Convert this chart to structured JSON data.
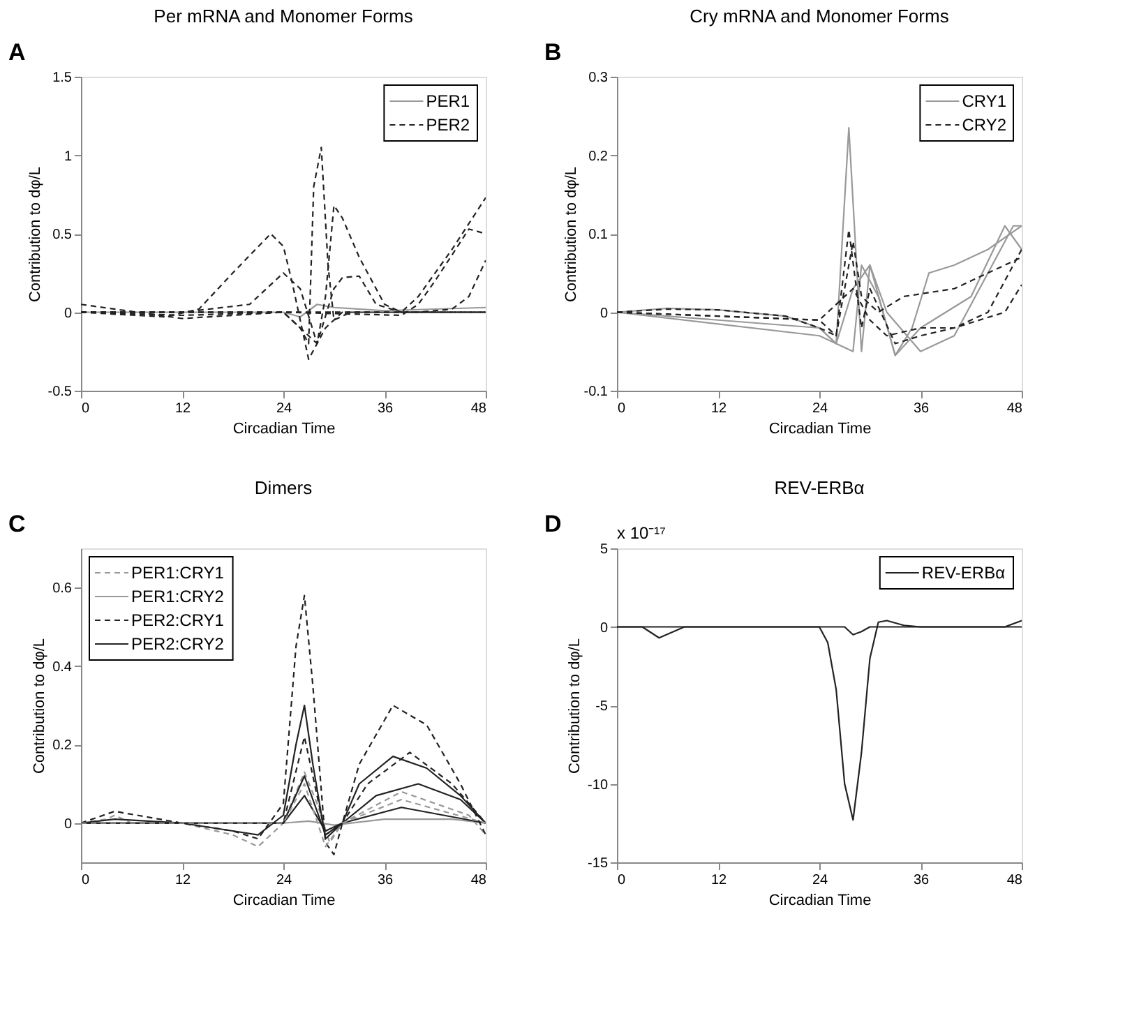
{
  "chart_data": [
    {
      "type": "line",
      "title": "Per mRNA and Monomer Forms",
      "xlabel": "Circadian Time",
      "ylabel": "Contribution to dφ/L",
      "annotations": [
        "A"
      ],
      "xlim": [
        0,
        48
      ],
      "xticks": [
        0,
        12,
        24,
        36,
        48
      ],
      "ylim": [
        -0.5,
        1.5
      ],
      "yticks": [
        -0.5,
        0,
        0.5,
        1,
        1.5
      ],
      "legend": "top right",
      "series": [
        {
          "name": "PER1",
          "color": "#999999",
          "line_style": "solid",
          "x": [
            0,
            12,
            24,
            26,
            28,
            30,
            36,
            48
          ],
          "values": [
            0,
            0,
            0,
            -0.03,
            0.05,
            0.03,
            0.01,
            0.03
          ]
        },
        {
          "name": "PER2",
          "color": "#222222",
          "line_style": "dashed",
          "x": [
            0,
            12,
            24,
            26,
            27,
            27.6,
            28.5,
            29.3,
            30,
            32,
            36,
            48
          ],
          "values": [
            0.05,
            -0.04,
            0,
            -0.1,
            -0.2,
            0.8,
            1.05,
            0.3,
            -0.05,
            0,
            0,
            0
          ]
        },
        {
          "color": "#222222",
          "line_style": "dashed",
          "x": [
            0,
            10,
            14,
            18,
            22.5,
            24,
            25,
            26,
            27,
            29,
            31,
            36,
            48
          ],
          "values": [
            0,
            -0.03,
            0.02,
            0.25,
            0.5,
            0.42,
            0.2,
            -0.05,
            -0.3,
            -0.1,
            0,
            0,
            0
          ]
        },
        {
          "color": "#222222",
          "line_style": "dashed",
          "x": [
            0,
            12,
            24,
            28,
            29,
            30,
            31,
            33,
            36,
            38,
            48
          ],
          "values": [
            0,
            -0.02,
            0,
            -0.2,
            0.1,
            0.68,
            0.6,
            0.35,
            0.05,
            0,
            0
          ]
        },
        {
          "color": "#222222",
          "line_style": "dashed",
          "x": [
            0,
            12,
            24,
            36,
            38,
            40,
            44,
            48
          ],
          "values": [
            0,
            0,
            0,
            0,
            0,
            0.1,
            0.4,
            0.73
          ]
        },
        {
          "color": "#222222",
          "line_style": "dashed",
          "x": [
            0,
            24,
            38,
            40,
            42,
            46,
            48
          ],
          "values": [
            0,
            0,
            -0.02,
            0.05,
            0.2,
            0.53,
            0.5
          ]
        },
        {
          "color": "#222222",
          "line_style": "dashed",
          "x": [
            0,
            24,
            40,
            44,
            46,
            48
          ],
          "values": [
            0,
            0,
            0,
            0.02,
            0.1,
            0.33
          ]
        },
        {
          "color": "#222222",
          "line_style": "dashed",
          "x": [
            0,
            12,
            20,
            24,
            26,
            28,
            30,
            31,
            33,
            35,
            38,
            48
          ],
          "values": [
            0,
            0,
            0.05,
            0.25,
            0.15,
            -0.2,
            0.15,
            0.22,
            0.23,
            0.05,
            0,
            0
          ]
        }
      ]
    },
    {
      "type": "line",
      "title": "Cry mRNA and Monomer Forms",
      "xlabel": "Circadian Time",
      "ylabel": "Contribution to dφ/L",
      "annotations": [
        "B"
      ],
      "xlim": [
        0,
        48
      ],
      "xticks": [
        0,
        12,
        24,
        36,
        48
      ],
      "ylim": [
        -0.1,
        0.3
      ],
      "yticks": [
        -0.1,
        0,
        0.1,
        0.2,
        0.3
      ],
      "legend": "top right",
      "series": [
        {
          "name": "CRY1",
          "color": "#999999",
          "line_style": "solid",
          "x": [
            0,
            6,
            12,
            20,
            24,
            26,
            27.5,
            29,
            30,
            33,
            36,
            42,
            46,
            48
          ],
          "values": [
            0,
            0.005,
            0.003,
            -0.005,
            -0.02,
            -0.04,
            0.235,
            -0.05,
            0.06,
            -0.055,
            -0.02,
            0.02,
            0.11,
            0.08
          ]
        },
        {
          "color": "#999999",
          "line_style": "solid",
          "x": [
            0,
            24,
            26,
            28,
            30,
            32,
            36,
            40,
            44,
            47,
            48
          ],
          "values": [
            0,
            -0.02,
            -0.04,
            0.03,
            0.06,
            0.0,
            -0.05,
            -0.03,
            0.05,
            0.11,
            0.11
          ]
        },
        {
          "color": "#999999",
          "line_style": "solid",
          "x": [
            0,
            24,
            28,
            29,
            31,
            33,
            35,
            37,
            40,
            44,
            48
          ],
          "values": [
            0,
            -0.03,
            -0.05,
            0.06,
            0.02,
            -0.055,
            -0.02,
            0.05,
            0.06,
            0.08,
            0.11
          ]
        },
        {
          "name": "CRY2",
          "color": "#222222",
          "line_style": "dashed",
          "x": [
            0,
            6,
            12,
            20,
            24,
            26,
            27.5,
            29,
            30,
            33,
            36,
            40,
            44,
            48
          ],
          "values": [
            0,
            0.004,
            0.003,
            -0.005,
            -0.02,
            -0.03,
            0.105,
            -0.02,
            0.03,
            -0.04,
            -0.03,
            -0.02,
            0.0,
            0.08
          ]
        },
        {
          "color": "#222222",
          "line_style": "dashed",
          "x": [
            0,
            24,
            26,
            28,
            29,
            31,
            34,
            40,
            44,
            48
          ],
          "values": [
            0,
            -0.01,
            -0.03,
            0.09,
            0.02,
            0.0,
            0.02,
            0.03,
            0.05,
            0.07
          ]
        },
        {
          "color": "#222222",
          "line_style": "dashed",
          "x": [
            0,
            24,
            28,
            30,
            32,
            36,
            40,
            46,
            48
          ],
          "values": [
            0,
            -0.01,
            0.03,
            -0.01,
            -0.03,
            -0.02,
            -0.02,
            0.0,
            0.035
          ]
        }
      ]
    },
    {
      "type": "line",
      "title": "Dimers",
      "xlabel": "Circadian Time",
      "ylabel": "Contribution to dφ/L",
      "annotations": [
        "C"
      ],
      "xlim": [
        0,
        48
      ],
      "xticks": [
        0,
        12,
        24,
        36,
        48
      ],
      "ylim": [
        -0.1,
        0.7
      ],
      "yticks": [
        0,
        0.2,
        0.4,
        0.6
      ],
      "legend": "top left",
      "series": [
        {
          "name": "PER1:CRY1",
          "color": "#999999",
          "line_style": "dashed",
          "x": [
            0,
            3,
            4,
            6,
            12,
            18,
            21,
            24,
            26.5,
            28,
            29.5,
            31,
            38,
            46,
            48
          ],
          "values": [
            0,
            0.01,
            0.02,
            0,
            0,
            -0.03,
            -0.06,
            0,
            0.13,
            0.05,
            -0.05,
            0,
            0.08,
            0.02,
            -0.03
          ]
        },
        {
          "name": "PER1:CRY2",
          "color": "#999999",
          "line_style": "solid",
          "x": [
            0,
            12,
            24,
            27,
            30,
            36,
            44,
            48
          ],
          "values": [
            0,
            0,
            0,
            0.005,
            -0.005,
            0.01,
            0.01,
            0
          ]
        },
        {
          "name": "PER2:CRY1",
          "color": "#222222",
          "line_style": "dashed",
          "x": [
            0,
            4,
            12,
            18,
            21,
            24,
            25.5,
            26.5,
            27.5,
            29,
            30,
            31,
            33,
            37,
            41,
            45,
            48
          ],
          "values": [
            0,
            0.03,
            0,
            -0.02,
            -0.04,
            0.05,
            0.45,
            0.58,
            0.35,
            -0.05,
            -0.08,
            0,
            0.15,
            0.3,
            0.25,
            0.1,
            -0.03
          ]
        },
        {
          "name": "PER2:CRY2",
          "color": "#222222",
          "line_style": "solid",
          "x": [
            0,
            4,
            12,
            18,
            21,
            24,
            25.5,
            26.5,
            27.5,
            29,
            31,
            33,
            37,
            41,
            45,
            48
          ],
          "values": [
            0,
            0.01,
            0,
            -0.02,
            -0.03,
            0.02,
            0.2,
            0.3,
            0.15,
            -0.04,
            0,
            0.1,
            0.17,
            0.14,
            0.07,
            0
          ]
        },
        {
          "color": "#222222",
          "line_style": "dashed",
          "x": [
            0,
            24,
            26.5,
            29,
            31,
            34,
            39,
            44,
            48
          ],
          "values": [
            0,
            0,
            0.22,
            -0.03,
            0,
            0.1,
            0.18,
            0.1,
            0
          ]
        },
        {
          "color": "#222222",
          "line_style": "solid",
          "x": [
            0,
            24,
            26.5,
            29,
            31,
            35,
            40,
            45,
            48
          ],
          "values": [
            0,
            0,
            0.12,
            -0.03,
            0,
            0.07,
            0.1,
            0.06,
            0
          ]
        },
        {
          "color": "#222222",
          "line_style": "solid",
          "x": [
            0,
            24,
            26.5,
            29,
            31,
            38,
            48
          ],
          "values": [
            0,
            0,
            0.07,
            -0.02,
            0,
            0.04,
            0
          ]
        },
        {
          "color": "#999999",
          "line_style": "dashed",
          "x": [
            0,
            24,
            26.5,
            29,
            31,
            38,
            48
          ],
          "values": [
            0,
            0,
            0.1,
            -0.06,
            0,
            0.06,
            0
          ]
        }
      ]
    },
    {
      "type": "line",
      "title": "REV-ERBα",
      "xlabel": "Circadian Time",
      "ylabel": "Contribution to dφ/L",
      "annotations": [
        "D",
        "x 10⁻¹⁷"
      ],
      "xlim": [
        0,
        48
      ],
      "xticks": [
        0,
        12,
        24,
        36,
        48
      ],
      "ylim": [
        -15,
        5
      ],
      "yticks": [
        -15,
        -10,
        -5,
        0,
        5
      ],
      "legend": "top right",
      "series": [
        {
          "name": "REV-ERBα",
          "color": "#222222",
          "line_style": "solid",
          "x": [
            0,
            3,
            5,
            8,
            12,
            24,
            25,
            26,
            27,
            28,
            29,
            30,
            31,
            32,
            34,
            36,
            46,
            48
          ],
          "values": [
            0,
            0,
            -0.7,
            0,
            0,
            0,
            -1,
            -4,
            -10,
            -12.3,
            -8,
            -2,
            0.3,
            0.4,
            0.1,
            0,
            0,
            0.4
          ]
        },
        {
          "color": "#222222",
          "line_style": "solid",
          "x": [
            0,
            27,
            28,
            29,
            30,
            48
          ],
          "values": [
            0,
            0,
            -0.5,
            -0.3,
            0,
            0
          ]
        }
      ]
    }
  ]
}
